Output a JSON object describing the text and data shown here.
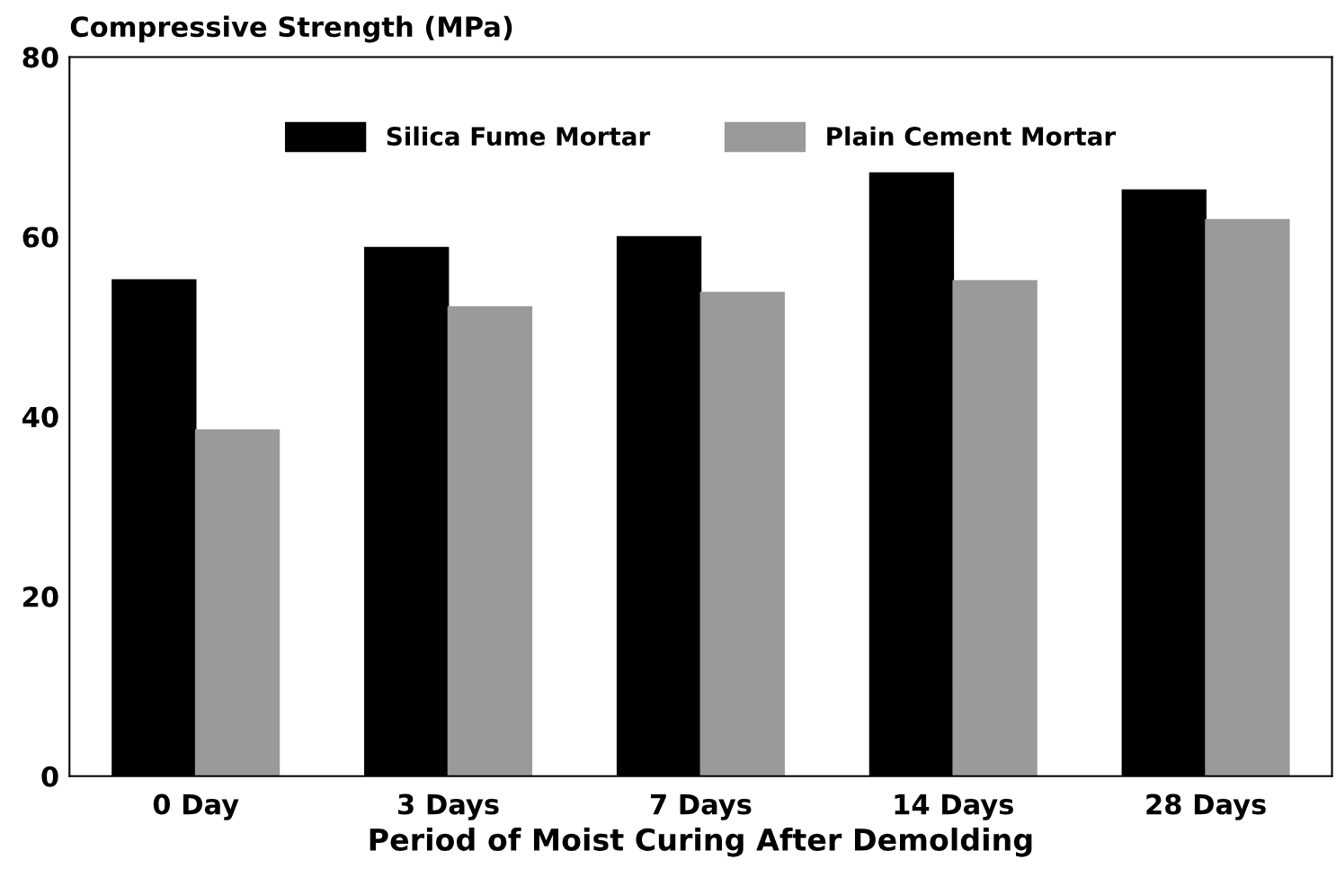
{
  "chart_data": {
    "type": "bar",
    "categories": [
      "0 Day",
      "3 Days",
      "7 Days",
      "14 Days",
      "28 Days"
    ],
    "series": [
      {
        "name": "Silica Fume Mortar",
        "color": "#000000",
        "values": [
          55.2,
          58.8,
          60,
          67.1,
          65.2
        ]
      },
      {
        "name": "Plain Cement Mortar",
        "color": "#9a9a9a",
        "values": [
          38.5,
          52.2,
          53.8,
          55.1,
          61.9
        ]
      }
    ],
    "ylabel": "Compressive Strength (MPa)",
    "xlabel": "Period of Moist Curing After Demolding",
    "ylim": [
      0,
      80
    ],
    "yticks": [
      0,
      20,
      40,
      60,
      80
    ],
    "legend": "top",
    "grid": false
  }
}
